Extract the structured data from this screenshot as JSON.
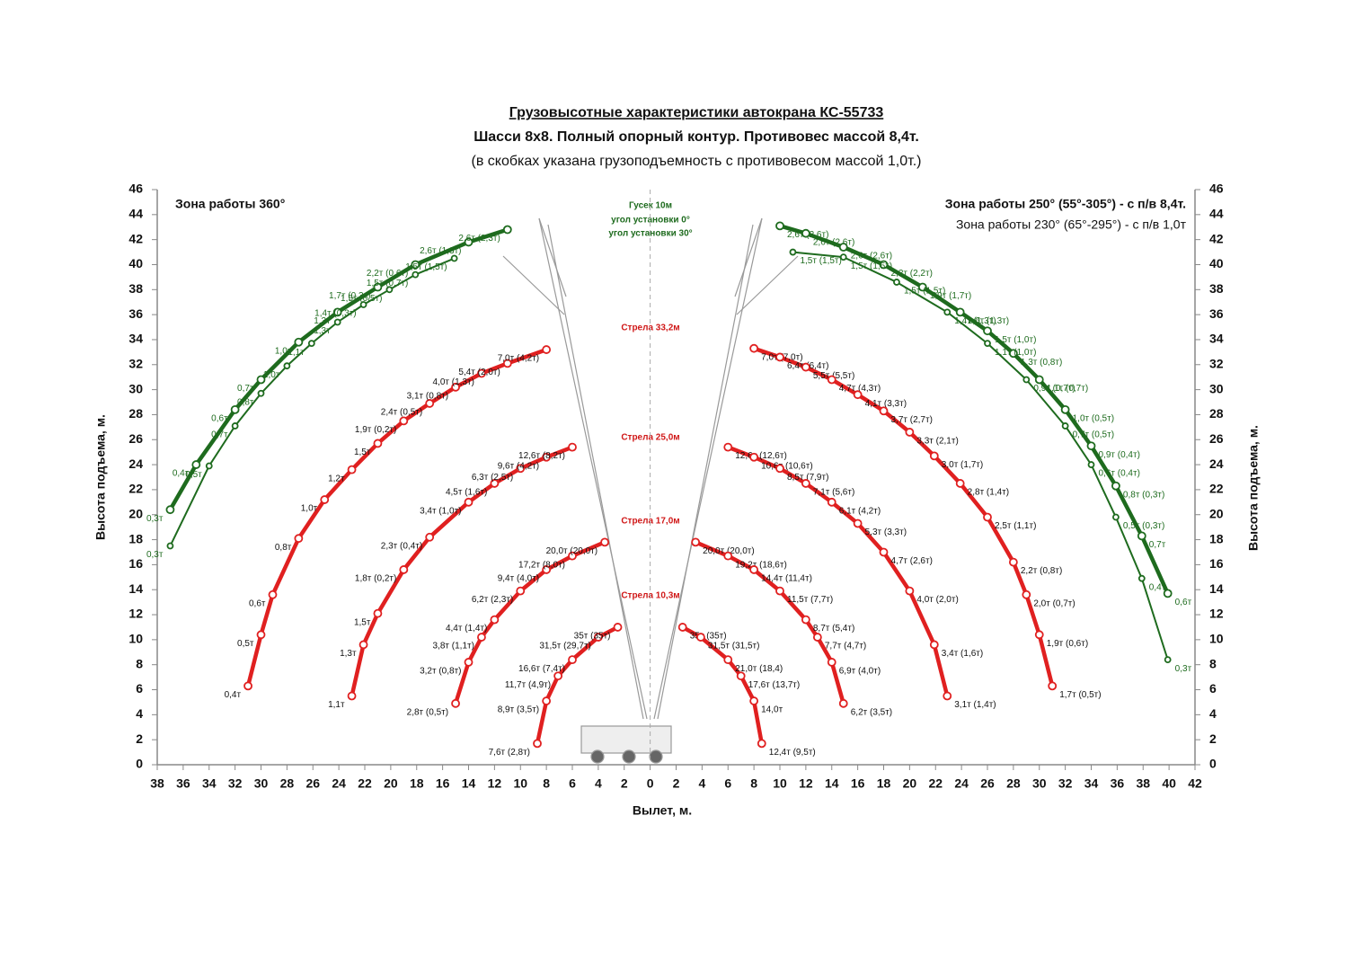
{
  "chart_data": {
    "type": "line",
    "title": "Грузовысотные характеристики автокрана КС-55733",
    "subtitle": "Шасси 8х8. Полный опорный контур. Противовес массой 8,4т.",
    "note": "(в скобках указана грузоподъемность с противовесом массой 1,0т.)",
    "x_label": "Вылет, м.",
    "y_label": "Высота подъема, м.",
    "y2_label": "Высота подъема, м.",
    "annotations": {
      "zone_left": "Зона работы 360°",
      "zone_right_1": "Зона работы 250° (55°-305°) - с п/в 8,4т.",
      "zone_right_2": "Зона работы 230° (65°-295°) - с п/в 1,0т",
      "jib": "Гусек 10м",
      "jib_0": "угол установки 0°",
      "jib_30": "угол установки 30°",
      "boom_33": "Стрела 33,2м",
      "boom_25": "Стрела 25,0м",
      "boom_17": "Стрела 17,0м",
      "boom_10": "Стрела 10,3м"
    },
    "xlim": [
      -38,
      42
    ],
    "ylim": [
      0,
      46
    ],
    "xticks": [
      {
        "value": -38,
        "label": "38"
      },
      {
        "value": -36,
        "label": "36"
      },
      {
        "value": -34,
        "label": "34"
      },
      {
        "value": -32,
        "label": "32"
      },
      {
        "value": -30,
        "label": "30"
      },
      {
        "value": -28,
        "label": "28"
      },
      {
        "value": -26,
        "label": "26"
      },
      {
        "value": -24,
        "label": "24"
      },
      {
        "value": -22,
        "label": "22"
      },
      {
        "value": -20,
        "label": "20"
      },
      {
        "value": -18,
        "label": "18"
      },
      {
        "value": -16,
        "label": "16"
      },
      {
        "value": -14,
        "label": "14"
      },
      {
        "value": -12,
        "label": "12"
      },
      {
        "value": -10,
        "label": "10"
      },
      {
        "value": -8,
        "label": "8"
      },
      {
        "value": -6,
        "label": "6"
      },
      {
        "value": -4,
        "label": "4"
      },
      {
        "value": -2,
        "label": "2"
      },
      0,
      2,
      4,
      6,
      8,
      10,
      12,
      14,
      16,
      18,
      20,
      22,
      24,
      26,
      28,
      30,
      32,
      34,
      36,
      38,
      40,
      42
    ],
    "yticks": [
      0,
      2,
      4,
      6,
      8,
      10,
      12,
      14,
      16,
      18,
      20,
      22,
      24,
      26,
      28,
      30,
      32,
      34,
      36,
      38,
      40,
      42,
      44,
      46
    ],
    "series": [
      {
        "color": "#1e6b1e",
        "line_width": 4.5,
        "label_color": "#1e6b1e",
        "x": [
          -37.0,
          -35.0,
          -32.0,
          -30.0,
          -27.1,
          -24.1,
          -21.0,
          -18.1,
          -14.0,
          -11.0
        ],
        "values": [
          20.4,
          24.0,
          28.4,
          30.8,
          33.8,
          36.2,
          38.2,
          40.0,
          41.8,
          42.8
        ],
        "labels": [
          "0,3т",
          "0,4т",
          "0,6т",
          "0,7т",
          "1,0т",
          "1,3т",
          "1,7т (0,3т)",
          "2,2т (0,6т)",
          "2,6т (1,3т)",
          "2,6т (2,3т)"
        ]
      },
      {
        "color": "#1e6b1e",
        "line_width": 2,
        "label_color": "#1e6b1e",
        "x": [
          -37.0,
          -34.0,
          -32.0,
          -30.0,
          -28.0,
          -26.1,
          -24.1,
          -22.1,
          -20.1,
          -18.1,
          -15.1
        ],
        "values": [
          17.5,
          23.9,
          27.1,
          29.7,
          31.9,
          33.7,
          35.4,
          36.8,
          38.0,
          39.2,
          40.5
        ],
        "labels": [
          "0,3т",
          "0,5т",
          "0,7т",
          "0,8т",
          "1,0т",
          "1,1т",
          "1,3т",
          "1,4т (0,3т)",
          "1,5т (0,5т)",
          "1,5т (0,7т)",
          "1,5т (1,5т)"
        ]
      },
      {
        "color": "#e02020",
        "line_width": 4.5,
        "label_color": "#111111",
        "x": [
          -31.0,
          -30.0,
          -29.1,
          -27.1,
          -25.1,
          -23.0,
          -21.0,
          -19.0,
          -17.0,
          -15.0,
          -13.0,
          -11.0,
          -8.0
        ],
        "values": [
          6.3,
          10.4,
          13.6,
          18.1,
          21.2,
          23.6,
          25.7,
          27.5,
          28.9,
          30.2,
          31.3,
          32.1,
          33.2
        ],
        "labels": [
          "0,4т",
          "0,5т",
          "0,6т",
          "0,8т",
          "1,0т",
          "1,2т",
          "1,5т",
          "1,9т (0,2т)",
          "2,4т (0,5т)",
          "3,1т (0,8т)",
          "4,0т (1,3т)",
          "5,4т (2,0т)",
          "7,0т (4,2т)"
        ]
      },
      {
        "color": "#e02020",
        "line_width": 4.5,
        "label_color": "#111111",
        "x": [
          -23.0,
          -22.1,
          -21.0,
          -19.0,
          -17.0,
          -14.0,
          -12.0,
          -10.0,
          -8.0,
          -6.0
        ],
        "values": [
          5.5,
          9.6,
          12.1,
          15.6,
          18.2,
          21.0,
          22.5,
          23.7,
          24.6,
          25.4
        ],
        "labels": [
          "1,1т",
          "1,3т",
          "1,5т",
          "1,8т (0,2т)",
          "2,3т (0,4т)",
          "3,4т (1,0т)",
          "4,5т (1,6т)",
          "6,3т (2,5т)",
          "9,6т (4,2т)",
          "12,6т (8,2т)"
        ]
      },
      {
        "color": "#e02020",
        "line_width": 4.5,
        "label_color": "#111111",
        "x": [
          -15.0,
          -14.0,
          -13.0,
          -12.0,
          -10.0,
          -8.0,
          -6.0,
          -3.5
        ],
        "values": [
          4.9,
          8.2,
          10.2,
          11.6,
          13.9,
          15.6,
          16.7,
          17.8
        ],
        "labels": [
          "2,8т (0,5т)",
          "3,2т (0,8т)",
          "3,8т (1,1т)",
          "4,4т (1,4т)",
          "6,2т (2,3т)",
          "9,4т (4,0т)",
          "17,2т (8,0т)",
          "20,0т (20,0т)"
        ]
      },
      {
        "color": "#e02020",
        "line_width": 4.5,
        "label_color": "#111111",
        "x": [
          -8.7,
          -8.0,
          -7.1,
          -6.0,
          -4.0,
          -2.5
        ],
        "values": [
          1.7,
          5.1,
          7.1,
          8.4,
          10.2,
          11.0
        ],
        "labels": [
          "7,6т (2,8т)",
          "8,9т (3,5т)",
          "11,7т (4,9т)",
          "16,6т (7,4т)",
          "31,5т (29,7т)",
          "35т (35т)"
        ]
      },
      {
        "color": "#1e6b1e",
        "line_width": 4.5,
        "label_color": "#1e6b1e",
        "x": [
          10.0,
          12.0,
          14.9,
          18.0,
          21.0,
          23.9,
          26.0,
          28.0,
          30.0,
          32.0,
          34.0,
          35.9,
          37.9,
          39.9
        ],
        "values": [
          43.1,
          42.5,
          41.4,
          40.0,
          38.2,
          36.2,
          34.7,
          32.9,
          30.8,
          28.4,
          25.5,
          22.3,
          18.3,
          13.7
        ],
        "labels": [
          "2,6т (2,6т)",
          "2,6т (2,6т)",
          "2,6т (2,6т)",
          "2,2т (2,2т)",
          "1,9т (1,7т)",
          "1,6т (1,3т)",
          "1,5т (1,0т)",
          "1,3т (0,8т)",
          "1,1т (0,7т)",
          "1,0т (0,5т)",
          "0,9т (0,4т)",
          "0,8т (0,3т)",
          "0,7т",
          "0,6т"
        ]
      },
      {
        "color": "#1e6b1e",
        "line_width": 2,
        "label_color": "#1e6b1e",
        "x": [
          11.0,
          14.9,
          19.0,
          22.9,
          26.0,
          29.0,
          32.0,
          34.0,
          35.9,
          37.9,
          39.9
        ],
        "values": [
          41.0,
          40.6,
          38.6,
          36.2,
          33.7,
          30.8,
          27.1,
          24.0,
          19.8,
          14.9,
          8.4
        ],
        "labels": [
          "1,5т (1,5т)",
          "1,5т (1,5т)",
          "1,5т (1,5т)",
          "1,4т (1,3т)",
          "1,1т (1,0т)",
          "0,9т (0,7т)",
          "0,7т (0,5т)",
          "0,6т (0,4т)",
          "0,5т (0,3т)",
          "0,4т",
          "0,3т"
        ]
      },
      {
        "color": "#e02020",
        "line_width": 4.5,
        "label_color": "#111111",
        "x": [
          8.0,
          10.0,
          12.0,
          14.0,
          16.0,
          18.0,
          20.0,
          21.9,
          23.9,
          26.0,
          28.0,
          29.0,
          30.0,
          31.0
        ],
        "values": [
          33.3,
          32.6,
          31.8,
          30.8,
          29.6,
          28.3,
          26.6,
          24.7,
          22.5,
          19.8,
          16.2,
          13.6,
          10.4,
          6.3
        ],
        "labels": [
          "7,0т (7,0т)",
          "6,4т (6,4т)",
          "5,5т (5,5т)",
          "4,7т (4,3т)",
          "4,1т (3,3т)",
          "3,7т (2,7т)",
          "3,3т (2,1т)",
          "3,0т (1,7т)",
          "2,8т (1,4т)",
          "2,5т (1,1т)",
          "2,2т (0,8т)",
          "2,0т (0,7т)",
          "1,9т (0,6т)",
          "1,7т (0,5т)"
        ]
      },
      {
        "color": "#e02020",
        "line_width": 4.5,
        "label_color": "#111111",
        "x": [
          6.0,
          8.0,
          10.0,
          12.0,
          14.0,
          16.0,
          18.0,
          20.0,
          21.9,
          22.9
        ],
        "values": [
          25.4,
          24.6,
          23.7,
          22.5,
          21.0,
          19.3,
          17.0,
          13.9,
          9.6,
          5.5
        ],
        "labels": [
          "12,6т (12,6т)",
          "10,6т (10,6т)",
          "8,5т (7,9т)",
          "7,1т (5,6т)",
          "6,1т (4,2т)",
          "5,3т (3,3т)",
          "4,7т (2,6т)",
          "4,0т (2,0т)",
          "3,4т (1,6т)",
          "3,1т (1,4т)"
        ]
      },
      {
        "color": "#e02020",
        "line_width": 4.5,
        "label_color": "#111111",
        "x": [
          3.5,
          6.0,
          8.0,
          10.0,
          12.0,
          12.9,
          14.0,
          14.9
        ],
        "values": [
          17.8,
          16.7,
          15.6,
          13.9,
          11.6,
          10.2,
          8.2,
          4.9
        ],
        "labels": [
          "20,0т (20,0т)",
          "19,2т (18,6т)",
          "14,4т (11,4т)",
          "11,5т (7,7т)",
          "8,7т (5,4т)",
          "7,7т (4,7т)",
          "6,9т (4,0т)",
          "6,2т (3,5т)"
        ]
      },
      {
        "color": "#e02020",
        "line_width": 4.5,
        "label_color": "#111111",
        "x": [
          2.5,
          3.9,
          6.0,
          7.0,
          8.0,
          8.6
        ],
        "values": [
          11.0,
          10.2,
          8.4,
          7.1,
          5.1,
          1.7
        ],
        "labels": [
          "35т (35т)",
          "31,5т (31,5т)",
          "21,0т (18,4)",
          "17,6т (13,7т)",
          "14,0т",
          "12,4т (9,5т)"
        ]
      }
    ]
  }
}
